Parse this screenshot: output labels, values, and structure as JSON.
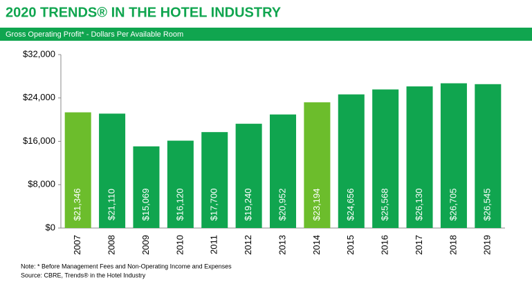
{
  "chart_data": {
    "type": "bar",
    "title": "2020 TRENDS® IN THE HOTEL INDUSTRY",
    "subtitle": "Gross Operating Profit* - Dollars Per Available Room",
    "categories": [
      "2007",
      "2008",
      "2009",
      "2010",
      "2011",
      "2012",
      "2013",
      "2014",
      "2015",
      "2016",
      "2017",
      "2018",
      "2019"
    ],
    "values": [
      21346,
      21110,
      15069,
      16120,
      17700,
      19240,
      20952,
      23194,
      24656,
      25568,
      26130,
      26705,
      26545
    ],
    "value_labels": [
      "$21,346",
      "$21,110",
      "$15,069",
      "$16,120",
      "$17,700",
      "$19,240",
      "$20,952",
      "$23,194",
      "$24,656",
      "$25,568",
      "$26,130",
      "$26,705",
      "$26,545"
    ],
    "colors": [
      "#6cbd2c",
      "#10a54f",
      "#10a54f",
      "#10a54f",
      "#10a54f",
      "#10a54f",
      "#10a54f",
      "#6cbd2c",
      "#10a54f",
      "#10a54f",
      "#10a54f",
      "#10a54f",
      "#10a54f"
    ],
    "ylim": [
      0,
      32000
    ],
    "yticks": [
      {
        "value": 0,
        "label": "$0"
      },
      {
        "value": 8000,
        "label": "$8,000"
      },
      {
        "value": 16000,
        "label": "$16,000"
      },
      {
        "value": 24000,
        "label": "$24,000"
      },
      {
        "value": 32000,
        "label": "$32,000"
      }
    ],
    "grid": false,
    "notes": [
      "Note: * Before Management Fees and Non-Operating Income and Expenses",
      "Source: CBRE, Trends® in the Hotel Industry"
    ]
  }
}
